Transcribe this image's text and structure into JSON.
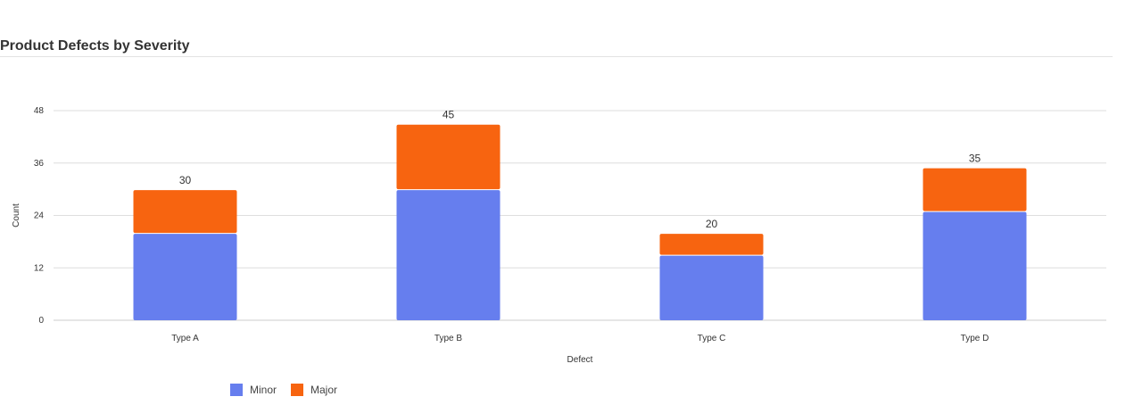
{
  "chart_data": {
    "type": "bar",
    "stacked": true,
    "title": "Product Defects by Severity",
    "xlabel": "Defect",
    "ylabel": "Count",
    "categories": [
      "Type A",
      "Type B",
      "Type C",
      "Type D"
    ],
    "series": [
      {
        "name": "Minor",
        "values": [
          20,
          30,
          15,
          25
        ],
        "color": "#667eee"
      },
      {
        "name": "Major",
        "values": [
          10,
          15,
          5,
          10
        ],
        "color": "#f76410"
      }
    ],
    "totals": [
      "30",
      "45",
      "20",
      "35"
    ],
    "yticks": [
      "0",
      "12",
      "24",
      "36",
      "48"
    ],
    "ylim": [
      0,
      48
    ],
    "grid": true,
    "legend_position": "bottom-left"
  }
}
